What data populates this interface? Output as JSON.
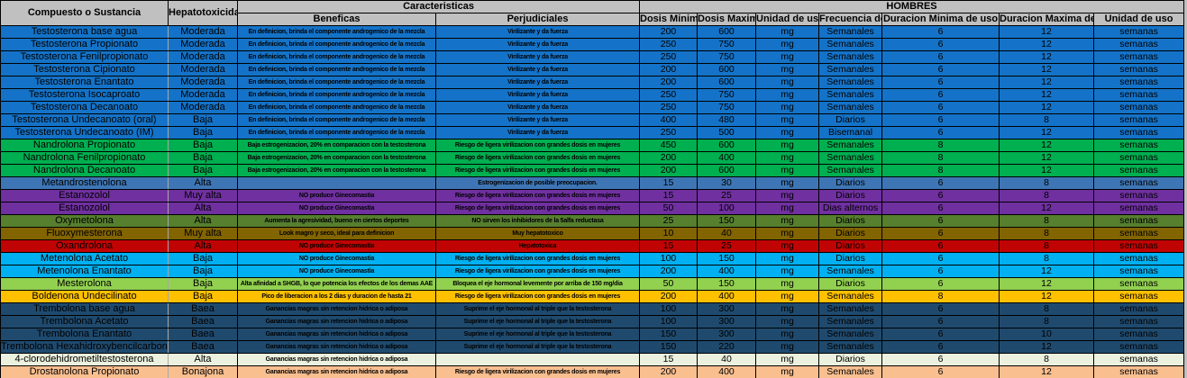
{
  "table": {
    "headers": {
      "compound": "Compuesto o Sustancia",
      "hepatotoxicity": "Hepatotoxicidad",
      "caracteristicas": "Caracteristicas",
      "beneficas": "Beneficas",
      "perjudiciales": "Perjudiciales",
      "hombres": "HOMBRES",
      "dosis_minima": "Dosis Minima",
      "dosis_maxima": "Dosis Maxima",
      "unidad_de_uso_dosis": "Unidad de uso",
      "frecuencia_de_uso": "Frecuencia de uso",
      "duracion_minima": "Duracion Minima de uso",
      "duracion_maxima": "Duracion Maxima de uso",
      "unidad_de_uso_duracion": "Unidad de uso"
    },
    "rows": [
      {
        "name": "Testosterona base agua",
        "hepatotoxicidad": "Moderada",
        "beneficas": "En definicion, brinda el componente androgenico de la mezcla",
        "perjudiciales": "Virilizante y da fuerza",
        "dosis_min": "200",
        "dosis_max": "600",
        "unidad_dosis": "mg",
        "frecuencia": "Semanales",
        "duracion_min": "6",
        "duracion_max": "12",
        "unidad_duracion": "semanas",
        "bg": "#1473C8"
      },
      {
        "name": "Testosterona Propionato",
        "hepatotoxicidad": "Moderada",
        "beneficas": "En definicion, brinda el componente androgenico de la mezcla",
        "perjudiciales": "Virilizante y da fuerza",
        "dosis_min": "250",
        "dosis_max": "750",
        "unidad_dosis": "mg",
        "frecuencia": "Semanales",
        "duracion_min": "6",
        "duracion_max": "12",
        "unidad_duracion": "semanas",
        "bg": "#1473C8"
      },
      {
        "name": "Testosterona Fenilpropionato",
        "hepatotoxicidad": "Moderada",
        "beneficas": "En definicion, brinda el componente androgenico de la mezcla",
        "perjudiciales": "Virilizante y da fuerza",
        "dosis_min": "250",
        "dosis_max": "750",
        "unidad_dosis": "mg",
        "frecuencia": "Semanales",
        "duracion_min": "6",
        "duracion_max": "12",
        "unidad_duracion": "semanas",
        "bg": "#1473C8"
      },
      {
        "name": "Testosterona Cipionato",
        "hepatotoxicidad": "Moderada",
        "beneficas": "En definicion, brinda el componente androgenico de la mezcla",
        "perjudiciales": "Virilizante y da fuerza",
        "dosis_min": "200",
        "dosis_max": "600",
        "unidad_dosis": "mg",
        "frecuencia": "Semanales",
        "duracion_min": "6",
        "duracion_max": "12",
        "unidad_duracion": "semanas",
        "bg": "#1473C8"
      },
      {
        "name": "Testosterona Enantato",
        "hepatotoxicidad": "Moderada",
        "beneficas": "En definicion, brinda el componente androgenico de la mezcla",
        "perjudiciales": "Virilizante y da fuerza",
        "dosis_min": "200",
        "dosis_max": "600",
        "unidad_dosis": "mg",
        "frecuencia": "Semanales",
        "duracion_min": "6",
        "duracion_max": "12",
        "unidad_duracion": "semanas",
        "bg": "#1473C8"
      },
      {
        "name": "Testosterona Isocaproato",
        "hepatotoxicidad": "Moderada",
        "beneficas": "En definicion, brinda el componente androgenico de la mezcla",
        "perjudiciales": "Virilizante y da fuerza",
        "dosis_min": "250",
        "dosis_max": "750",
        "unidad_dosis": "mg",
        "frecuencia": "Semanales",
        "duracion_min": "6",
        "duracion_max": "12",
        "unidad_duracion": "semanas",
        "bg": "#1473C8"
      },
      {
        "name": "Testosterona Decanoato",
        "hepatotoxicidad": "Moderada",
        "beneficas": "En definicion, brinda el componente androgenico de la mezcla",
        "perjudiciales": "Virilizante y da fuerza",
        "dosis_min": "250",
        "dosis_max": "750",
        "unidad_dosis": "mg",
        "frecuencia": "Semanales",
        "duracion_min": "6",
        "duracion_max": "12",
        "unidad_duracion": "semanas",
        "bg": "#1473C8"
      },
      {
        "name": "Testosterona Undecanoato (oral)",
        "hepatotoxicidad": "Baja",
        "beneficas": "En definicion, brinda el componente androgenico de la mezcla",
        "perjudiciales": "Virilizante y da fuerza",
        "dosis_min": "400",
        "dosis_max": "480",
        "unidad_dosis": "mg",
        "frecuencia": "Diarios",
        "duracion_min": "6",
        "duracion_max": "8",
        "unidad_duracion": "semanas",
        "bg": "#1473C8"
      },
      {
        "name": "Testosterona Undecanoato (IM)",
        "hepatotoxicidad": "Baja",
        "beneficas": "En definicion, brinda el componente androgenico de la mezcla",
        "perjudiciales": "Virilizante y da fuerza",
        "dosis_min": "250",
        "dosis_max": "500",
        "unidad_dosis": "mg",
        "frecuencia": "Bisemanal",
        "duracion_min": "6",
        "duracion_max": "12",
        "unidad_duracion": "semanas",
        "bg": "#1473C8"
      },
      {
        "name": "Nandrolona Propionato",
        "hepatotoxicidad": "Baja",
        "beneficas": "Baja estrogenizacion, 20% en comparacion con la testosterona",
        "perjudiciales": "Riesgo de ligera virilizacion con grandes dosis en mujeres",
        "dosis_min": "450",
        "dosis_max": "600",
        "unidad_dosis": "mg",
        "frecuencia": "Semanales",
        "duracion_min": "8",
        "duracion_max": "12",
        "unidad_duracion": "semanas",
        "bg": "#00AF50"
      },
      {
        "name": "Nandrolona Fenilpropionato",
        "hepatotoxicidad": "Baja",
        "beneficas": "Baja estrogenizacion, 20% en comparacion con la testosterona",
        "perjudiciales": "Riesgo de ligera virilizacion con grandes dosis en mujeres",
        "dosis_min": "200",
        "dosis_max": "400",
        "unidad_dosis": "mg",
        "frecuencia": "Semanales",
        "duracion_min": "8",
        "duracion_max": "12",
        "unidad_duracion": "semanas",
        "bg": "#00AF50"
      },
      {
        "name": "Nandrolona Decanoato",
        "hepatotoxicidad": "Baja",
        "beneficas": "Baja estrogenizacion, 20% en comparacion con la testosterona",
        "perjudiciales": "Riesgo de ligera virilizacion con grandes dosis en mujeres",
        "dosis_min": "200",
        "dosis_max": "600",
        "unidad_dosis": "mg",
        "frecuencia": "Semanales",
        "duracion_min": "8",
        "duracion_max": "12",
        "unidad_duracion": "semanas",
        "bg": "#00AF50"
      },
      {
        "name": "Metandrostenolona",
        "hepatotoxicidad": "Alta",
        "beneficas": "",
        "perjudiciales": "Estrogenizacion de posible preocupacion.",
        "dosis_min": "15",
        "dosis_max": "30",
        "unidad_dosis": "mg",
        "frecuencia": "Diarios",
        "duracion_min": "6",
        "duracion_max": "8",
        "unidad_duracion": "semanas",
        "bg": "#3E76B5"
      },
      {
        "name": "Estanozolol",
        "hepatotoxicidad": "Muy alta",
        "beneficas": "NO produce Ginecomastia",
        "perjudiciales": "Riesgo de ligera virilizacion con grandes dosis en mujeres",
        "dosis_min": "15",
        "dosis_max": "25",
        "unidad_dosis": "mg",
        "frecuencia": "Diarios",
        "duracion_min": "6",
        "duracion_max": "8",
        "unidad_duracion": "semanas",
        "bg": "#7030A0"
      },
      {
        "name": "Estanozolol",
        "hepatotoxicidad": "Alta",
        "beneficas": "NO produce Ginecomastia",
        "perjudiciales": "Riesgo de ligera virilizacion con grandes dosis en mujeres",
        "dosis_min": "50",
        "dosis_max": "100",
        "unidad_dosis": "mg",
        "frecuencia": "Dias alternos",
        "duracion_min": "6",
        "duracion_max": "12",
        "unidad_duracion": "semanas",
        "bg": "#7030A0"
      },
      {
        "name": "Oxymetolona",
        "hepatotoxicidad": "Alta",
        "beneficas": "Aumenta la agresividad, bueno en ciertos deportes",
        "perjudiciales": "NO sirven los inhibidores de la 5alfa reductasa",
        "dosis_min": "25",
        "dosis_max": "150",
        "unidad_dosis": "mg",
        "frecuencia": "Diarios",
        "duracion_min": "6",
        "duracion_max": "8",
        "unidad_duracion": "semanas",
        "bg": "#567F2E"
      },
      {
        "name": "Fluoxymesterona",
        "hepatotoxicidad": "Muy alta",
        "beneficas": "Look magro y seco, ideal para definicion",
        "perjudiciales": "Muy hepatotoxico",
        "dosis_min": "10",
        "dosis_max": "40",
        "unidad_dosis": "mg",
        "frecuencia": "Diarios",
        "duracion_min": "6",
        "duracion_max": "8",
        "unidad_duracion": "semanas",
        "bg": "#826400"
      },
      {
        "name": "Oxandrolona",
        "hepatotoxicidad": "Alta",
        "beneficas": "NO produce Ginecomastia",
        "perjudiciales": "Hepatotoxica",
        "dosis_min": "15",
        "dosis_max": "25",
        "unidad_dosis": "mg",
        "frecuencia": "Diarios",
        "duracion_min": "6",
        "duracion_max": "8",
        "unidad_duracion": "semanas",
        "bg": "#C00404"
      },
      {
        "name": "Metenolona Acetato",
        "hepatotoxicidad": "Baja",
        "beneficas": "NO produce Ginecomastia",
        "perjudiciales": "Riesgo de ligera virilizacion con grandes dosis en mujeres",
        "dosis_min": "100",
        "dosis_max": "150",
        "unidad_dosis": "mg",
        "frecuencia": "Diarios",
        "duracion_min": "6",
        "duracion_max": "8",
        "unidad_duracion": "semanas",
        "bg": "#00B0F0"
      },
      {
        "name": "Metenolona Enantato",
        "hepatotoxicidad": "Baja",
        "beneficas": "NO produce Ginecomastia",
        "perjudiciales": "Riesgo de ligera virilizacion con grandes dosis en mujeres",
        "dosis_min": "200",
        "dosis_max": "400",
        "unidad_dosis": "mg",
        "frecuencia": "Semanales",
        "duracion_min": "6",
        "duracion_max": "12",
        "unidad_duracion": "semanas",
        "bg": "#00B0F0"
      },
      {
        "name": "Mesterolona",
        "hepatotoxicidad": "Baja",
        "beneficas": "Alta afinidad a SHGB, lo que potencia los efectos de los demas AAE",
        "perjudiciales": "Bloquea el eje hormonal levemente por arriba de 150 mg/dia",
        "dosis_min": "50",
        "dosis_max": "150",
        "unidad_dosis": "mg",
        "frecuencia": "Diarios",
        "duracion_min": "6",
        "duracion_max": "12",
        "unidad_duracion": "semanas",
        "bg": "#92D050"
      },
      {
        "name": "Boldenona Undecilinato",
        "hepatotoxicidad": "Baja",
        "beneficas": "Pico de liberacion a los 2 dias y duracion de hasta 21",
        "perjudiciales": "Riesgo de ligera virilizacion con grandes dosis en mujeres",
        "dosis_min": "200",
        "dosis_max": "400",
        "unidad_dosis": "mg",
        "frecuencia": "Semanales",
        "duracion_min": "8",
        "duracion_max": "12",
        "unidad_duracion": "semanas",
        "bg": "#FFC000"
      },
      {
        "name": "Trembolona base agua",
        "hepatotoxicidad": "Baea",
        "beneficas": "Ganancias magras sin retencion hidrica o adiposa",
        "perjudiciales": "Suprime el eje hormonal al triple que la testosterona",
        "dosis_min": "100",
        "dosis_max": "300",
        "unidad_dosis": "mg",
        "frecuencia": "Semanales",
        "duracion_min": "6",
        "duracion_max": "8",
        "unidad_duracion": "semanas",
        "bg": "#1F4A6E"
      },
      {
        "name": "Trembolona Acetato",
        "hepatotoxicidad": "Baea",
        "beneficas": "Ganancias magras sin retencion hidrica o adiposa",
        "perjudiciales": "Suprime el eje hormonal al triple que la testosterona",
        "dosis_min": "100",
        "dosis_max": "300",
        "unidad_dosis": "mg",
        "frecuencia": "Semanales",
        "duracion_min": "6",
        "duracion_max": "8",
        "unidad_duracion": "semanas",
        "bg": "#1F4A6E"
      },
      {
        "name": "Trembolona Enantato",
        "hepatotoxicidad": "Baea",
        "beneficas": "Ganancias magras sin retencion hidrica o adiposa",
        "perjudiciales": "Suprime el eje hormonal al triple que la testosterona",
        "dosis_min": "150",
        "dosis_max": "300",
        "unidad_dosis": "mg",
        "frecuencia": "Semanales",
        "duracion_min": "6",
        "duracion_max": "10",
        "unidad_duracion": "semanas",
        "bg": "#1F4A6E"
      },
      {
        "name": "Trembolona Hexahidroxybencilcarbonato",
        "hepatotoxicidad": "Baea",
        "beneficas": "Ganancias magras sin retencion hidrica o adiposa",
        "perjudiciales": "Suprime el eje hormonal al triple que la testosterona",
        "dosis_min": "150",
        "dosis_max": "220",
        "unidad_dosis": "mg",
        "frecuencia": "Semanales",
        "duracion_min": "6",
        "duracion_max": "12",
        "unidad_duracion": "semanas",
        "bg": "#1F4A6E"
      },
      {
        "name": "4-clorodehidrometiltestosterona",
        "hepatotoxicidad": "Alta",
        "beneficas": "Ganancias magras sin retencion hidrica o adiposa",
        "perjudiciales": "",
        "dosis_min": "15",
        "dosis_max": "40",
        "unidad_dosis": "mg",
        "frecuencia": "Diarios",
        "duracion_min": "6",
        "duracion_max": "8",
        "unidad_duracion": "semanas",
        "bg": "#EBF1DE"
      },
      {
        "name": "Drostanolona Propionato",
        "hepatotoxicidad": "Bonajona",
        "beneficas": "Ganancias magras sin retencion hidrica o adiposa",
        "perjudiciales": "Riesgo de ligera virilizacion con grandes dosis en mujeres",
        "dosis_min": "200",
        "dosis_max": "400",
        "unidad_dosis": "mg",
        "frecuencia": "Semanales",
        "duracion_min": "6",
        "duracion_max": "12",
        "unidad_duracion": "semanas",
        "bg": "#FABF8F"
      }
    ]
  },
  "colors": {
    "header_bg": "#C0C0C0",
    "grid_black": "#000000",
    "grid_silver": "#A8A8A8"
  }
}
